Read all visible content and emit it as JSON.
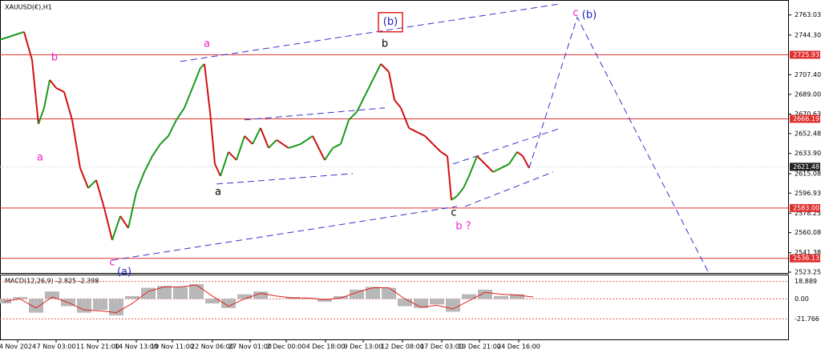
{
  "chart_data": {
    "type": "line",
    "title": "XAUUSD(€),H1",
    "xlim": [
      0,
      983
    ],
    "ylim": [
      2521,
      2777
    ],
    "x": [
      0,
      15,
      30,
      40,
      48,
      55,
      62,
      70,
      80,
      90,
      100,
      110,
      120,
      130,
      140,
      150,
      160,
      170,
      180,
      190,
      200,
      210,
      220,
      230,
      240,
      250,
      255,
      262,
      268,
      275,
      285,
      295,
      305,
      315,
      325,
      335,
      345,
      360,
      375,
      390,
      405,
      415,
      425,
      435,
      445,
      455,
      465,
      475,
      485,
      492,
      500,
      510,
      520,
      530,
      540,
      550,
      558,
      563,
      570,
      578,
      585,
      595,
      605,
      615,
      625,
      635,
      645,
      652,
      660
    ],
    "series": [
      {
        "name": "XAUUSD",
        "color": "#1a9a1a",
        "down_color": "#d01010",
        "values": [
          2739.9,
          2743.6,
          2747.3,
          2721.2,
          2661.4,
          2676.4,
          2702.5,
          2695.0,
          2691.3,
          2665.2,
          2620.3,
          2601.7,
          2609.1,
          2583.0,
          2553.1,
          2575.5,
          2564.3,
          2597.9,
          2616.6,
          2631.5,
          2642.7,
          2650.2,
          2665.2,
          2676.4,
          2695.0,
          2713.7,
          2717.4,
          2672.6,
          2624.1,
          2612.9,
          2635.3,
          2627.8,
          2650.2,
          2642.7,
          2657.7,
          2639.0,
          2646.5,
          2639.0,
          2642.7,
          2650.2,
          2627.8,
          2639.0,
          2642.7,
          2665.2,
          2672.6,
          2687.6,
          2702.5,
          2717.4,
          2710.0,
          2683.8,
          2676.4,
          2657.7,
          2653.9,
          2650.2,
          2642.7,
          2635.3,
          2631.5,
          2590.5,
          2594.2,
          2601.7,
          2612.9,
          2631.5,
          2624.1,
          2616.6,
          2620.3,
          2624.1,
          2635.3,
          2631.5,
          2620.3
        ]
      }
    ],
    "yticks": [
      {
        "value": 2763.03,
        "label": "2763.03"
      },
      {
        "value": 2744.3,
        "label": "2744.30"
      },
      {
        "value": 2707.4,
        "label": "2707.40"
      },
      {
        "value": 2689.0,
        "label": "2689.00"
      },
      {
        "value": 2670.63,
        "label": "2670.63"
      },
      {
        "value": 2652.48,
        "label": "2652.48"
      },
      {
        "value": 2633.9,
        "label": "2633.90"
      },
      {
        "value": 2615.08,
        "label": "2615.08"
      },
      {
        "value": 2596.93,
        "label": "2596.93"
      },
      {
        "value": 2578.25,
        "label": "2578.25"
      },
      {
        "value": 2560.08,
        "label": "2560.08"
      },
      {
        "value": 2541.38,
        "label": "2541.38"
      },
      {
        "value": 2523.25,
        "label": "2523.25"
      }
    ],
    "levels": [
      {
        "value": 2725.93,
        "label": "2725.93"
      },
      {
        "value": 2666.19,
        "label": "2666.19"
      },
      {
        "value": 2583.0,
        "label": "2583.00"
      },
      {
        "value": 2536.13,
        "label": "2536.13"
      }
    ],
    "level_color": "#e03030",
    "current_price": {
      "value": 2621.48,
      "label": "2621.48"
    },
    "xticks": [
      {
        "value": 22,
        "label": "4 Nov 2024"
      },
      {
        "value": 70,
        "label": "7 Nov 03:00"
      },
      {
        "value": 122,
        "label": "11 Nov 21:00"
      },
      {
        "value": 170,
        "label": "14 Nov 13:00"
      },
      {
        "value": 215,
        "label": "19 Nov 11:00"
      },
      {
        "value": 265,
        "label": "22 Nov 06:00"
      },
      {
        "value": 312,
        "label": "27 Nov 01:00"
      },
      {
        "value": 357,
        "label": "2 Dec 00:00"
      },
      {
        "value": 406,
        "label": "4 Dec 18:00"
      },
      {
        "value": 453,
        "label": "9 Dec 13:00"
      },
      {
        "value": 502,
        "label": "12 Dec 08:00"
      },
      {
        "value": 551,
        "label": "17 Dec 03:00"
      },
      {
        "value": 598,
        "label": "19 Dec 21:00"
      },
      {
        "value": 647,
        "label": "24 Dec 16:00"
      }
    ],
    "trend_color": "#3333cc",
    "trendlines": [
      {
        "x": [
          225,
          700
        ],
        "values": [
          2719.7,
          2773.5
        ]
      },
      {
        "x": [
          140,
          570
        ],
        "values": [
          2534.4,
          2584.5
        ]
      },
      {
        "x": [
          305,
          480
        ],
        "values": [
          2665.2,
          2676.4
        ]
      },
      {
        "x": [
          270,
          440
        ],
        "values": [
          2605.4,
          2615.1
        ]
      },
      {
        "x": [
          565,
          700
        ],
        "values": [
          2624.1,
          2657.7
        ]
      },
      {
        "x": [
          580,
          690
        ],
        "values": [
          2584.5,
          2616.6
        ]
      },
      {
        "x": [
          660,
          720,
          885
        ],
        "values": [
          2620.3,
          2760.8,
          2521.0
        ]
      }
    ],
    "annotations": [
      {
        "text": "(b)",
        "x": 487,
        "y": 2756.3,
        "color": "#2020c0",
        "box": "#e02020"
      },
      {
        "text": "b",
        "x": 480,
        "y": 2736.1,
        "color": "#000000"
      },
      {
        "text": "a",
        "x": 258,
        "y": 2736.1,
        "color": "#ee22cc"
      },
      {
        "text": "b",
        "x": 68,
        "y": 2723.4,
        "color": "#ee22cc"
      },
      {
        "text": "a",
        "x": 50,
        "y": 2630.0,
        "color": "#ee22cc"
      },
      {
        "text": "c",
        "x": 140,
        "y": 2532.2,
        "color": "#ee22cc"
      },
      {
        "text": "(a)",
        "x": 155,
        "y": 2523.2,
        "color": "#2020c0"
      },
      {
        "text": "a",
        "x": 272,
        "y": 2597.9,
        "color": "#000000"
      },
      {
        "text": "c",
        "x": 566,
        "y": 2578.5,
        "color": "#000000"
      },
      {
        "text": "b ?",
        "x": 578,
        "y": 2565.8,
        "color": "#ee22cc"
      },
      {
        "text": "c",
        "x": 718,
        "y": 2764.5,
        "color": "#ee22cc"
      },
      {
        "text": "(b)",
        "x": 735,
        "y": 2763.0,
        "color": "#2020c0"
      }
    ],
    "macd": {
      "label": "MACD(12,26,9) -2.825 -2.398",
      "ylim": [
        -44,
        25.5
      ],
      "yticks": [
        {
          "value": 18.889,
          "label": "18.889"
        },
        {
          "value": 0,
          "label": "0.00"
        },
        {
          "value": -21.766,
          "label": "-21.766"
        }
      ],
      "x": [
        5,
        25,
        45,
        65,
        85,
        105,
        125,
        145,
        165,
        185,
        205,
        225,
        245,
        265,
        285,
        305,
        325,
        345,
        365,
        385,
        405,
        425,
        445,
        465,
        485,
        505,
        525,
        545,
        565,
        585,
        605,
        625,
        645,
        665
      ],
      "histogram": [
        -5,
        2,
        -15,
        8,
        -8,
        -15,
        -12,
        -18,
        3,
        12,
        14,
        13,
        16,
        -5,
        -10,
        5,
        8,
        0,
        2,
        1,
        -3,
        3,
        10,
        13,
        12,
        -8,
        -10,
        -6,
        -14,
        5,
        10,
        3,
        5,
        0
      ],
      "signal": [
        -3,
        0,
        -10,
        2,
        -4,
        -12,
        -13,
        -15,
        -5,
        8,
        13,
        13,
        15,
        3,
        -8,
        0,
        6,
        3,
        1,
        1,
        -1,
        1,
        7,
        12,
        12,
        0,
        -9,
        -7,
        -11,
        -2,
        7,
        5,
        4,
        2
      ],
      "hist_color": "#b8b8b8",
      "signal_color": "#e02020"
    }
  }
}
